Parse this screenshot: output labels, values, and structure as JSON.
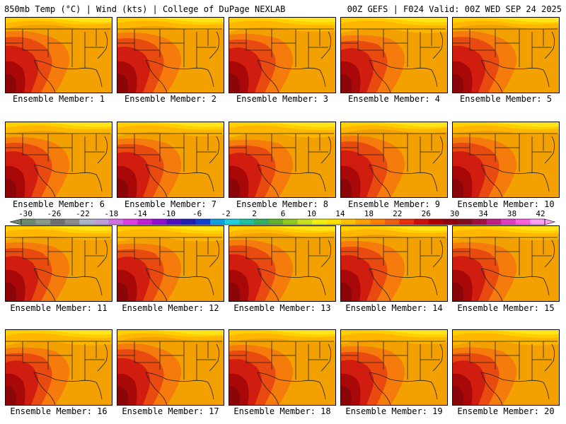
{
  "header": {
    "left_title": "850mb Temp (°C) | Wind (kts) | College of DuPage NEXLAB",
    "right_title": "00Z GEFS | F024 Valid: 00Z WED SEP 24 2025"
  },
  "members": [
    {
      "label": "Ensemble Member: 1"
    },
    {
      "label": "Ensemble Member: 2"
    },
    {
      "label": "Ensemble Member: 3"
    },
    {
      "label": "Ensemble Member: 4"
    },
    {
      "label": "Ensemble Member: 5"
    },
    {
      "label": "Ensemble Member: 6"
    },
    {
      "label": "Ensemble Member: 7"
    },
    {
      "label": "Ensemble Member: 8"
    },
    {
      "label": "Ensemble Member: 9"
    },
    {
      "label": "Ensemble Member: 10"
    },
    {
      "label": "Ensemble Member: 11"
    },
    {
      "label": "Ensemble Member: 12"
    },
    {
      "label": "Ensemble Member: 13"
    },
    {
      "label": "Ensemble Member: 14"
    },
    {
      "label": "Ensemble Member: 15"
    },
    {
      "label": "Ensemble Member: 16"
    },
    {
      "label": "Ensemble Member: 17"
    },
    {
      "label": "Ensemble Member: 18"
    },
    {
      "label": "Ensemble Member: 19"
    },
    {
      "label": "Ensemble Member: 20"
    }
  ],
  "colorbar": {
    "ticks": [
      "-30",
      "-26",
      "-22",
      "-18",
      "-14",
      "-10",
      "-6",
      "-2",
      "2",
      "6",
      "10",
      "14",
      "18",
      "22",
      "26",
      "30",
      "34",
      "38",
      "42"
    ],
    "colors": [
      "#6e8a6e",
      "#8a9a8a",
      "#707070",
      "#8c8c8c",
      "#a8b8c8",
      "#c0a0d8",
      "#d070e0",
      "#e040e0",
      "#c020d0",
      "#9010d0",
      "#5010c0",
      "#2020b0",
      "#1040d0",
      "#10a0e0",
      "#20d0e0",
      "#20c0a0",
      "#30b060",
      "#60b030",
      "#90c820",
      "#c8e020",
      "#f0f010",
      "#ffe000",
      "#ffc000",
      "#ffa000",
      "#ff8000",
      "#f06010",
      "#e83010",
      "#d01010",
      "#b00000",
      "#900010",
      "#801020",
      "#a01040",
      "#c02080",
      "#e040c0",
      "#ff60e0",
      "#ffa0f0"
    ]
  },
  "map": {
    "base_color": "#f3a100",
    "band_colors": [
      "#ffe51a",
      "#ffd000",
      "#ffb600",
      "#f47b0c",
      "#e84a10",
      "#d11d10",
      "#a80808",
      "#8a0608"
    ],
    "line_color": "#222222"
  }
}
